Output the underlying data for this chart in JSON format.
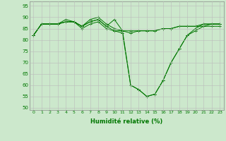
{
  "xlabel": "Humidité relative (%)",
  "background_color": "#cce8cc",
  "grid_color": "#bbbbbb",
  "line_color": "#007700",
  "xlim": [
    -0.5,
    23.5
  ],
  "ylim": [
    49,
    97
  ],
  "yticks": [
    50,
    55,
    60,
    65,
    70,
    75,
    80,
    85,
    90,
    95
  ],
  "xticks": [
    0,
    1,
    2,
    3,
    4,
    5,
    6,
    7,
    8,
    9,
    10,
    11,
    12,
    13,
    14,
    15,
    16,
    17,
    18,
    19,
    20,
    21,
    22,
    23
  ],
  "series": [
    [
      82,
      87,
      87,
      87,
      89,
      88,
      86,
      88,
      89,
      86,
      84,
      83,
      60,
      58,
      55,
      56,
      62,
      70,
      76,
      82,
      85,
      87,
      87,
      87
    ],
    [
      82,
      87,
      87,
      87,
      88,
      88,
      86,
      89,
      90,
      87,
      85,
      84,
      60,
      58,
      55,
      56,
      62,
      70,
      76,
      82,
      84,
      86,
      87,
      87
    ],
    [
      82,
      87,
      87,
      87,
      88,
      88,
      86,
      88,
      89,
      86,
      89,
      84,
      83,
      84,
      84,
      84,
      85,
      85,
      86,
      86,
      86,
      87,
      87,
      87
    ],
    [
      82,
      87,
      87,
      87,
      88,
      88,
      85,
      87,
      88,
      85,
      84,
      84,
      84,
      84,
      84,
      84,
      85,
      85,
      86,
      86,
      86,
      86,
      86,
      86
    ]
  ]
}
